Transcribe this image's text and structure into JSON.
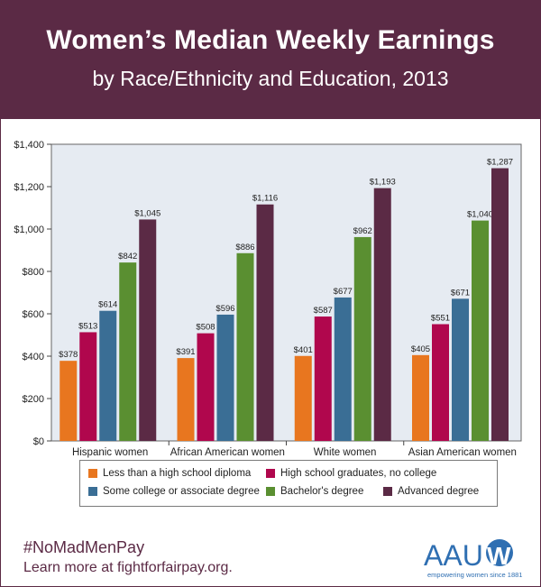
{
  "header": {
    "title": "Women’s Median Weekly Earnings",
    "subtitle": "by Race/Ethnicity and Education, 2013"
  },
  "colors": {
    "header_bg": "#5b2a45",
    "plot_bg": "#e6ebf2",
    "series": [
      "#e8761f",
      "#b0074d",
      "#3a6e95",
      "#5a8f31",
      "#5b2a45"
    ]
  },
  "chart_data": {
    "type": "bar",
    "title": "Women’s Median Weekly Earnings",
    "subtitle": "by Race/Ethnicity and Education, 2013",
    "categories": [
      "Hispanic women",
      "African American women",
      "White women",
      "Asian American women"
    ],
    "series": [
      {
        "name": "Less than a high school diploma",
        "values": [
          378,
          391,
          401,
          405
        ],
        "labels": [
          "$378",
          "$391",
          "$401",
          "$405"
        ]
      },
      {
        "name": "High school graduates, no college",
        "values": [
          513,
          508,
          587,
          551
        ],
        "labels": [
          "$513",
          "$508",
          "$587",
          "$551"
        ]
      },
      {
        "name": "Some college or associate degree",
        "values": [
          614,
          596,
          677,
          671
        ],
        "labels": [
          "$614",
          "$596",
          "$677",
          "$671"
        ]
      },
      {
        "name": "Bachelor's degree",
        "values": [
          842,
          886,
          962,
          1040
        ],
        "labels": [
          "$842",
          "$886",
          "$962",
          "$1,040"
        ]
      },
      {
        "name": "Advanced degree",
        "values": [
          1045,
          1116,
          1193,
          1287
        ],
        "labels": [
          "$1,045",
          "$1,116",
          "$1,193",
          "$1,287"
        ]
      }
    ],
    "ylim": [
      0,
      1400
    ],
    "yticks": [
      0,
      200,
      400,
      600,
      800,
      1000,
      1200,
      1400
    ],
    "ytick_labels": [
      "$0",
      "$200",
      "$400",
      "$600",
      "$800",
      "$1,000",
      "$1,200",
      "$1,400"
    ],
    "xlabel": "",
    "ylabel": "",
    "grid": false,
    "legend_position": "bottom"
  },
  "legend": {
    "items": [
      "Less than a high school diploma",
      "High school graduates, no college",
      "Some college or associate degree",
      "Bachelor's degree",
      "Advanced degree"
    ]
  },
  "footer": {
    "hashtag": "#NoMadMenPay",
    "learn_more": "Learn more at fightforfairpay.org."
  },
  "logo": {
    "name": "AAUW",
    "tagline": "empowering women since 1881"
  }
}
